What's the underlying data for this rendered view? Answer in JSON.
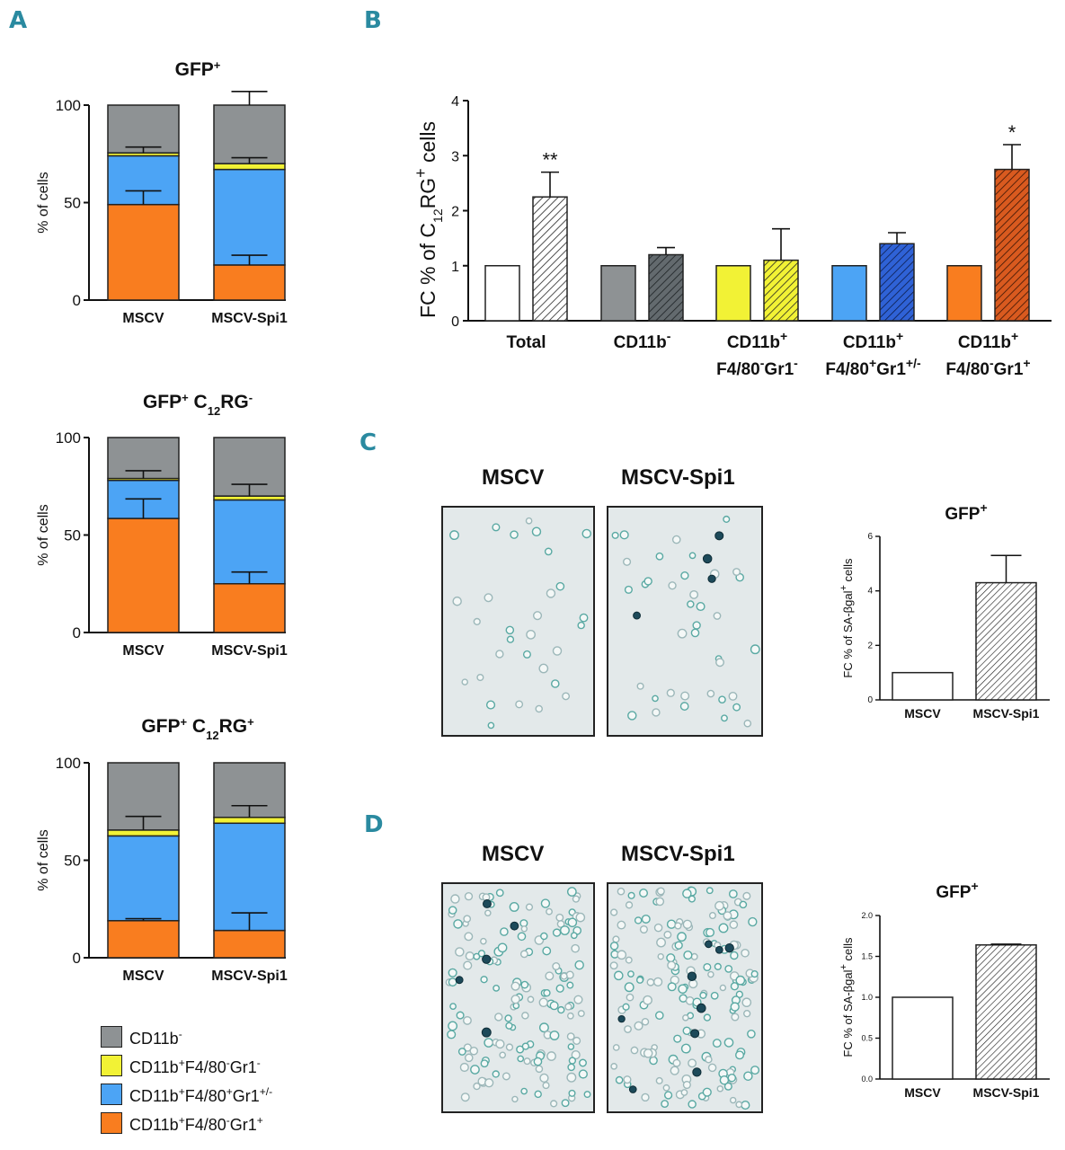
{
  "panel_labels": {
    "a": "A",
    "b": "B",
    "c": "C",
    "d": "D"
  },
  "colors": {
    "cd11b_neg": "#8e9294",
    "yellow_pop": "#f2f235",
    "blue_pop": "#4ca4f5",
    "orange_pop": "#f97d1f",
    "dark_grey": "#636a6e",
    "dark_blue": "#2f62d6",
    "dark_orange": "#d95a1f",
    "micro_bg": "#e3e9ea"
  },
  "legend": [
    {
      "base": "CD11b",
      "sup": "-",
      "colorKey": "cd11b_neg"
    },
    {
      "base": "CD11b",
      "sup": "+",
      "mid": "F4/80",
      "sup2": "-",
      "tail": "Gr1",
      "sup3": "-",
      "colorKey": "yellow_pop"
    },
    {
      "base": "CD11b",
      "sup": "+",
      "mid": "F4/80",
      "sup2": "+",
      "tail": "Gr1",
      "sup3": "+/-",
      "colorKey": "blue_pop"
    },
    {
      "base": "CD11b",
      "sup": "+",
      "mid": "F4/80",
      "sup2": "-",
      "tail": "Gr1",
      "sup3": "+",
      "colorKey": "orange_pop"
    }
  ],
  "micrographs": {
    "c": {
      "left_title": "MSCV",
      "right_title": "MSCV-Spi1"
    },
    "d": {
      "left_title": "MSCV",
      "right_title": "MSCV-Spi1"
    }
  },
  "chart_data": [
    {
      "id": "A1",
      "type": "bar",
      "stacked": true,
      "title": "GFP+",
      "title_base": "GFP",
      "title_sup": "+",
      "ylabel": "% of cells",
      "ylim": [
        0,
        100
      ],
      "yticks": [
        0,
        50,
        100
      ],
      "categories": [
        "MSCV",
        "MSCV-Spi1"
      ],
      "series": [
        {
          "name": "CD11b+F4/80-Gr1+",
          "colorKey": "orange_pop",
          "values": [
            49,
            18
          ],
          "errors": [
            7,
            5
          ]
        },
        {
          "name": "CD11b+F4/80+Gr1+/-",
          "colorKey": "blue_pop",
          "values": [
            25,
            49
          ],
          "errors": [
            0,
            0
          ]
        },
        {
          "name": "CD11b+F4/80-Gr1-",
          "colorKey": "yellow_pop",
          "values": [
            1.5,
            3
          ],
          "errors": [
            3,
            3
          ]
        },
        {
          "name": "CD11b-",
          "colorKey": "cd11b_neg",
          "values": [
            24.5,
            30
          ],
          "errors": [
            0,
            7
          ]
        }
      ]
    },
    {
      "id": "A2",
      "type": "bar",
      "stacked": true,
      "title": "GFP+ C12RG-",
      "title_base": "GFP",
      "title_sup": "+",
      "title_mid": " C",
      "title_sub": "12",
      "title_tail": "RG",
      "title_sup2": "-",
      "ylabel": "% of cells",
      "ylim": [
        0,
        100
      ],
      "yticks": [
        0,
        50,
        100
      ],
      "categories": [
        "MSCV",
        "MSCV-Spi1"
      ],
      "series": [
        {
          "name": "CD11b+F4/80-Gr1+",
          "colorKey": "orange_pop",
          "values": [
            58.5,
            25
          ],
          "errors": [
            10,
            6
          ]
        },
        {
          "name": "CD11b+F4/80+Gr1+/-",
          "colorKey": "blue_pop",
          "values": [
            19.5,
            43
          ],
          "errors": [
            0,
            0
          ]
        },
        {
          "name": "CD11b+F4/80-Gr1-",
          "colorKey": "yellow_pop",
          "values": [
            1,
            2
          ],
          "errors": [
            4,
            6
          ]
        },
        {
          "name": "CD11b-",
          "colorKey": "cd11b_neg",
          "values": [
            21,
            30
          ],
          "errors": [
            0,
            0
          ]
        }
      ]
    },
    {
      "id": "A3",
      "type": "bar",
      "stacked": true,
      "title": "GFP+ C12RG+",
      "title_base": "GFP",
      "title_sup": "+",
      "title_mid": " C",
      "title_sub": "12",
      "title_tail": "RG",
      "title_sup2": "+",
      "ylabel": "% of cells",
      "ylim": [
        0,
        100
      ],
      "yticks": [
        0,
        50,
        100
      ],
      "categories": [
        "MSCV",
        "MSCV-Spi1"
      ],
      "series": [
        {
          "name": "CD11b+F4/80-Gr1+",
          "colorKey": "orange_pop",
          "values": [
            19,
            14
          ],
          "errors": [
            1,
            9
          ]
        },
        {
          "name": "CD11b+F4/80+Gr1+/-",
          "colorKey": "blue_pop",
          "values": [
            43.5,
            55
          ],
          "errors": [
            0,
            0
          ]
        },
        {
          "name": "CD11b+F4/80-Gr1-",
          "colorKey": "yellow_pop",
          "values": [
            3,
            3
          ],
          "errors": [
            7,
            6
          ]
        },
        {
          "name": "CD11b-",
          "colorKey": "cd11b_neg",
          "values": [
            34.5,
            28
          ],
          "errors": [
            0,
            0
          ]
        }
      ]
    },
    {
      "id": "B",
      "type": "bar",
      "grouped": true,
      "ylabel": "FC % of C12RG+ cells",
      "ylabel_pre": "FC % of C",
      "ylabel_sub": "12",
      "ylabel_mid": "RG",
      "ylabel_sup": "+",
      "ylabel_post": " cells",
      "ylim": [
        0,
        4
      ],
      "yticks": [
        0,
        1,
        2,
        3,
        4
      ],
      "groups": [
        {
          "label": [
            "Total"
          ],
          "colorKey": null,
          "values": [
            1,
            2.25
          ],
          "errors": [
            0,
            0.45
          ],
          "annotation": "**"
        },
        {
          "label": [
            "CD11b-"
          ],
          "colorKey": "cd11b_neg",
          "hatchKey": "dark_grey",
          "values": [
            1,
            1.2
          ],
          "errors": [
            0,
            0.13
          ],
          "annotation": ""
        },
        {
          "label": [
            "CD11b+",
            "F4/80-Gr1-"
          ],
          "colorKey": "yellow_pop",
          "hatchKey": "yellow_pop",
          "values": [
            1,
            1.1
          ],
          "errors": [
            0,
            0.57
          ],
          "annotation": ""
        },
        {
          "label": [
            "CD11b+",
            "F4/80+Gr1+/-"
          ],
          "colorKey": "blue_pop",
          "hatchKey": "dark_blue",
          "values": [
            1,
            1.4
          ],
          "errors": [
            0,
            0.2
          ],
          "annotation": ""
        },
        {
          "label": [
            "CD11b+",
            "F4/80-Gr1+"
          ],
          "colorKey": "orange_pop",
          "hatchKey": "dark_orange",
          "values": [
            1,
            2.75
          ],
          "errors": [
            0,
            0.45
          ],
          "annotation": "*"
        }
      ]
    },
    {
      "id": "C",
      "type": "bar",
      "title": "GFP+",
      "title_base": "GFP",
      "title_sup": "+",
      "ylabel": "FC % of SA-βgal+ cells",
      "ylabel_pre": "FC % of SA-βgal",
      "ylabel_sup": "+",
      "ylabel_post": " cells",
      "ylim": [
        0,
        6
      ],
      "yticks": [
        0,
        2,
        4,
        6
      ],
      "ytick_labels": [
        "0",
        "2",
        "4",
        "6"
      ],
      "categories": [
        "MSCV",
        "MSCV-Spi1"
      ],
      "values": [
        1,
        4.3
      ],
      "errors": [
        0,
        1.0
      ]
    },
    {
      "id": "D",
      "type": "bar",
      "title": "GFP+",
      "title_base": "GFP",
      "title_sup": "+",
      "ylabel": "FC % of SA-βgal+ cells",
      "ylabel_pre": "FC % of SA-βgal",
      "ylabel_sup": "+",
      "ylabel_post": " cells",
      "ylim": [
        0,
        2
      ],
      "yticks": [
        0,
        0.5,
        1,
        1.5,
        2
      ],
      "ytick_labels": [
        "0.0",
        "0.5",
        "1.0",
        "1.5",
        "2.0"
      ],
      "categories": [
        "MSCV",
        "MSCV-Spi1"
      ],
      "values": [
        1,
        1.64
      ],
      "errors": [
        0,
        0.01
      ]
    }
  ]
}
